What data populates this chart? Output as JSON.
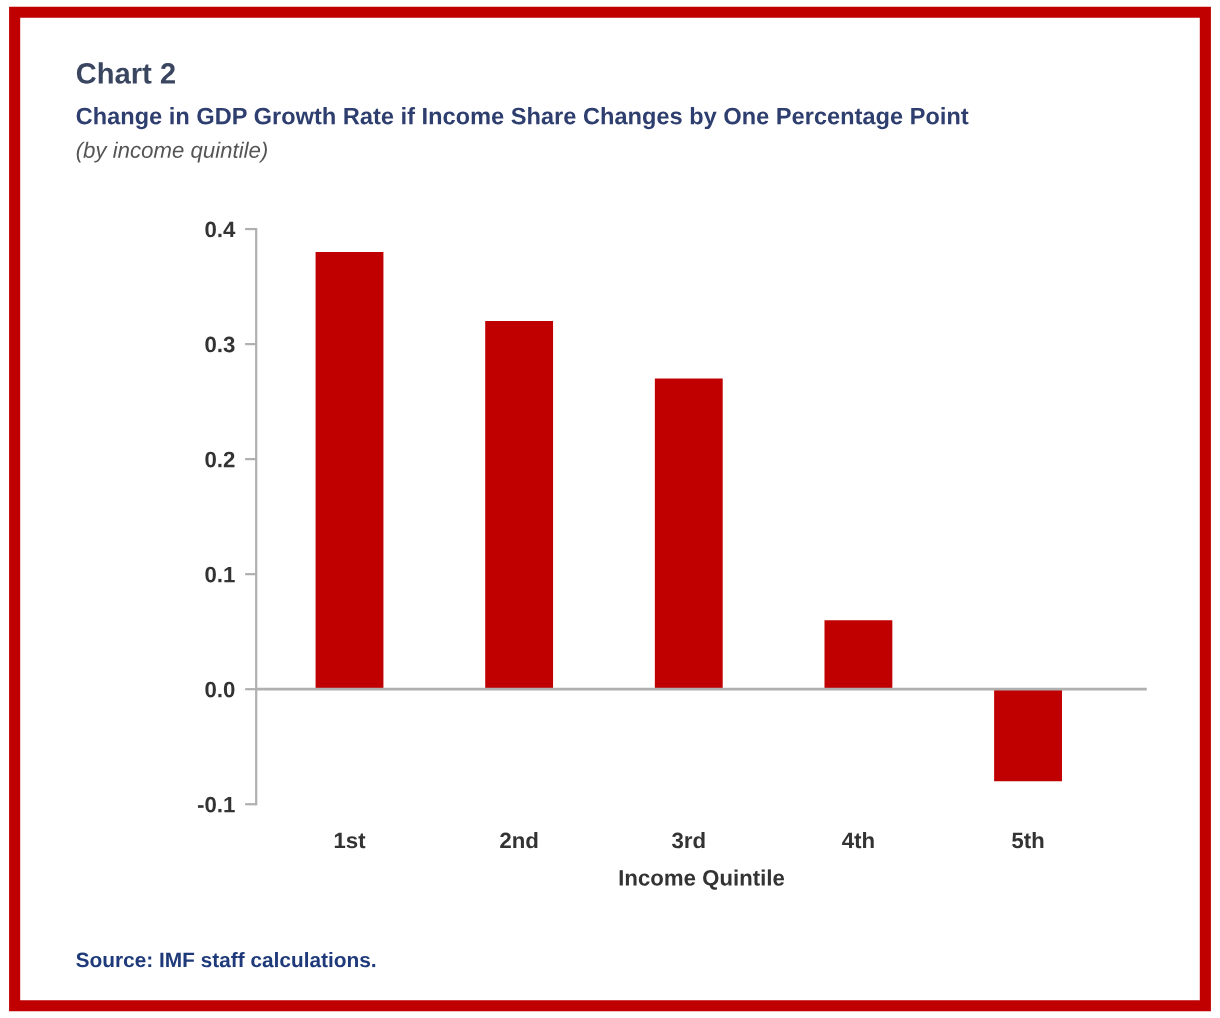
{
  "chart_data": {
    "type": "bar",
    "title": "Chart 2",
    "subtitle": "Change in GDP Growth Rate if Income Share Changes by One Percentage Point\n(by income quintile)",
    "xlabel": "Income Quintile",
    "categories": [
      "1st",
      "2nd",
      "3rd",
      "4th",
      "5th"
    ],
    "values": [
      0.38,
      0.32,
      0.27,
      0.06,
      -0.08
    ],
    "color": "#c00000",
    "ylim": [
      -0.1,
      0.4
    ],
    "yticks": [
      {
        "value": -0.1,
        "label": "-0.1"
      },
      {
        "value": 0.0,
        "label": "0.0"
      },
      0.1,
      0.2,
      0.3,
      0.4
    ],
    "ref_lines": [
      {
        "axis": "y",
        "value": 0,
        "color": "#b0b0b0"
      }
    ],
    "grid": false,
    "annotations": [
      "Source: IMF staff calculations."
    ]
  }
}
